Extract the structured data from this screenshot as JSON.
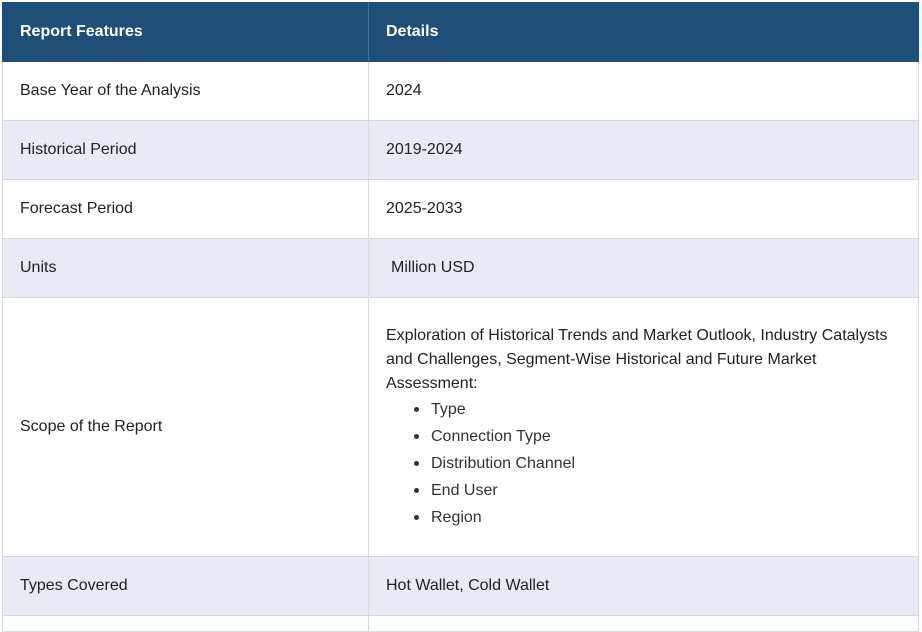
{
  "header": {
    "col1": "Report Features",
    "col2": "Details"
  },
  "rows": [
    {
      "feature": "Base Year of the Analysis",
      "detail": "2024"
    },
    {
      "feature": "Historical Period",
      "detail": "2019-2024"
    },
    {
      "feature": "Forecast Period",
      "detail": "2025-2033"
    },
    {
      "feature": "Units",
      "detail": "Million USD"
    },
    {
      "feature": "Scope of the Report",
      "detail": "Exploration of Historical Trends and Market Outlook, Industry Catalysts and Challenges, Segment-Wise Historical and Future Market Assessment:",
      "list": [
        "Type",
        "Connection Type",
        "Distribution Channel",
        "End User",
        "Region"
      ]
    },
    {
      "feature": "Types Covered",
      "detail": "Hot Wallet, Cold Wallet"
    }
  ],
  "colors": {
    "header_bg": "#1f4e79",
    "header_text": "#ffffff",
    "shaded_row": "#e8eaf4",
    "border": "#d6d9e0"
  }
}
